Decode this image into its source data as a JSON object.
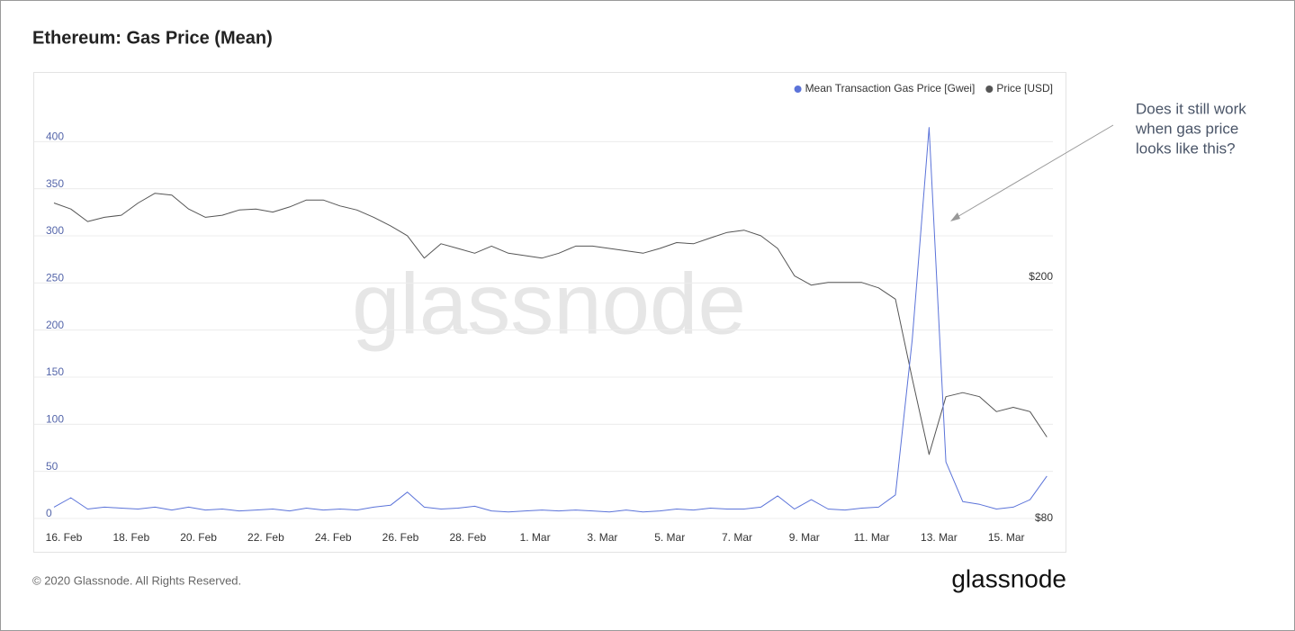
{
  "chart_data": {
    "type": "line",
    "title": "Ethereum: Gas Price (Mean)",
    "categories": [
      "16. Feb",
      null,
      null,
      null,
      "18. Feb",
      null,
      null,
      null,
      "20. Feb",
      null,
      null,
      null,
      "22. Feb",
      null,
      null,
      null,
      "24. Feb",
      null,
      null,
      null,
      "26. Feb",
      null,
      null,
      null,
      "28. Feb",
      null,
      null,
      null,
      "1. Mar",
      null,
      null,
      null,
      "3. Mar",
      null,
      null,
      null,
      "5. Mar",
      null,
      null,
      null,
      "7. Mar",
      null,
      null,
      null,
      "9. Mar",
      null,
      null,
      null,
      "11. Mar",
      null,
      null,
      null,
      "13. Mar",
      null,
      null,
      null,
      "15. Mar",
      null,
      null,
      null
    ],
    "series": [
      {
        "name": "Mean Transaction Gas Price [Gwei]",
        "color": "#5b73d9",
        "values": [
          12,
          22,
          10,
          12,
          11,
          10,
          12,
          9,
          12,
          9,
          10,
          8,
          9,
          10,
          8,
          11,
          9,
          10,
          9,
          12,
          14,
          28,
          12,
          10,
          11,
          13,
          8,
          7,
          8,
          9,
          8,
          9,
          8,
          7,
          9,
          7,
          8,
          10,
          9,
          11,
          10,
          10,
          12,
          24,
          10,
          20,
          10,
          9,
          11,
          12,
          25,
          190,
          415,
          60,
          18,
          15,
          10,
          12,
          20,
          45
        ]
      },
      {
        "name": "Price [USD]",
        "color": "#555555",
        "axis": "y2",
        "values": [
          265,
          259,
          247,
          251,
          253,
          265,
          275,
          273,
          259,
          251,
          253,
          258,
          259,
          256,
          261,
          268,
          268,
          262,
          258,
          251,
          243,
          234,
          215,
          227,
          223,
          219,
          225,
          219,
          217,
          215,
          219,
          225,
          225,
          223,
          221,
          219,
          223,
          228,
          227,
          232,
          237,
          239,
          234,
          223,
          201,
          194,
          196,
          196,
          196,
          192,
          184,
          136,
          102,
          127,
          129,
          127,
          120,
          122,
          120,
          109
        ]
      }
    ],
    "ylim": [
      0,
      450
    ],
    "yticks": [
      0,
      50,
      100,
      150,
      200,
      250,
      300,
      350,
      400
    ],
    "y2lim": [
      80,
      400
    ],
    "y2log": true,
    "y2ticks": [
      {
        "value": 80,
        "label": "$80"
      },
      {
        "value": 200,
        "label": "$200"
      }
    ],
    "grid": true,
    "legend": "top-right",
    "watermark": "glassnode",
    "annotation": [
      "Does it still work",
      "when gas price",
      "looks like this?"
    ],
    "footer": "© 2020 Glassnode. All Rights Reserved.",
    "logo": "glassnode"
  }
}
